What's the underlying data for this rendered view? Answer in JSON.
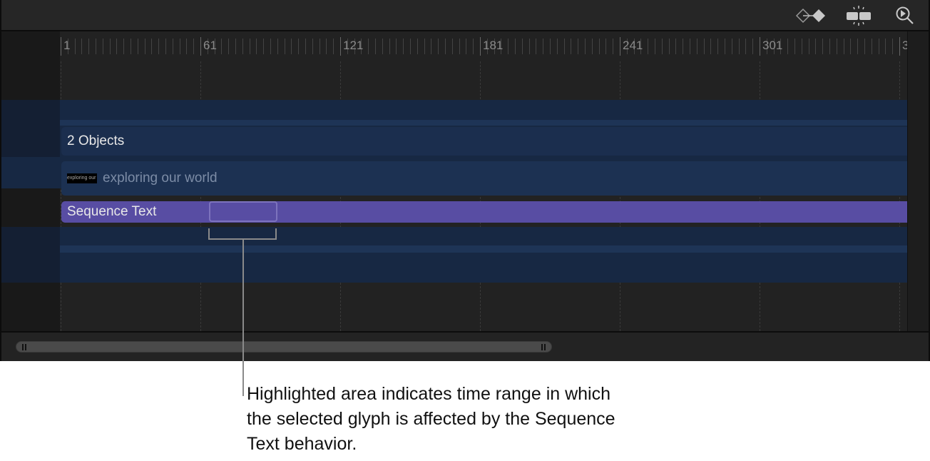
{
  "toolbar": {
    "icons": [
      "keyframe-navigate-icon",
      "snap-icon",
      "zoom-to-playhead-icon"
    ]
  },
  "ruler": {
    "labels": [
      "1",
      "61",
      "121",
      "181",
      "241",
      "301",
      "3"
    ]
  },
  "tracks": {
    "group_label": "2 Objects",
    "text_layer_label": "exploring our world",
    "text_layer_thumbnail": "exploring our world",
    "behavior_label": "Sequence Text"
  },
  "colors": {
    "behavior": "#584da3",
    "group": "#1b2e4e",
    "band": "#172843"
  },
  "callout": {
    "text": "Highlighted area indicates time range in which the selected glyph is affected by the Sequence Text behavior."
  }
}
